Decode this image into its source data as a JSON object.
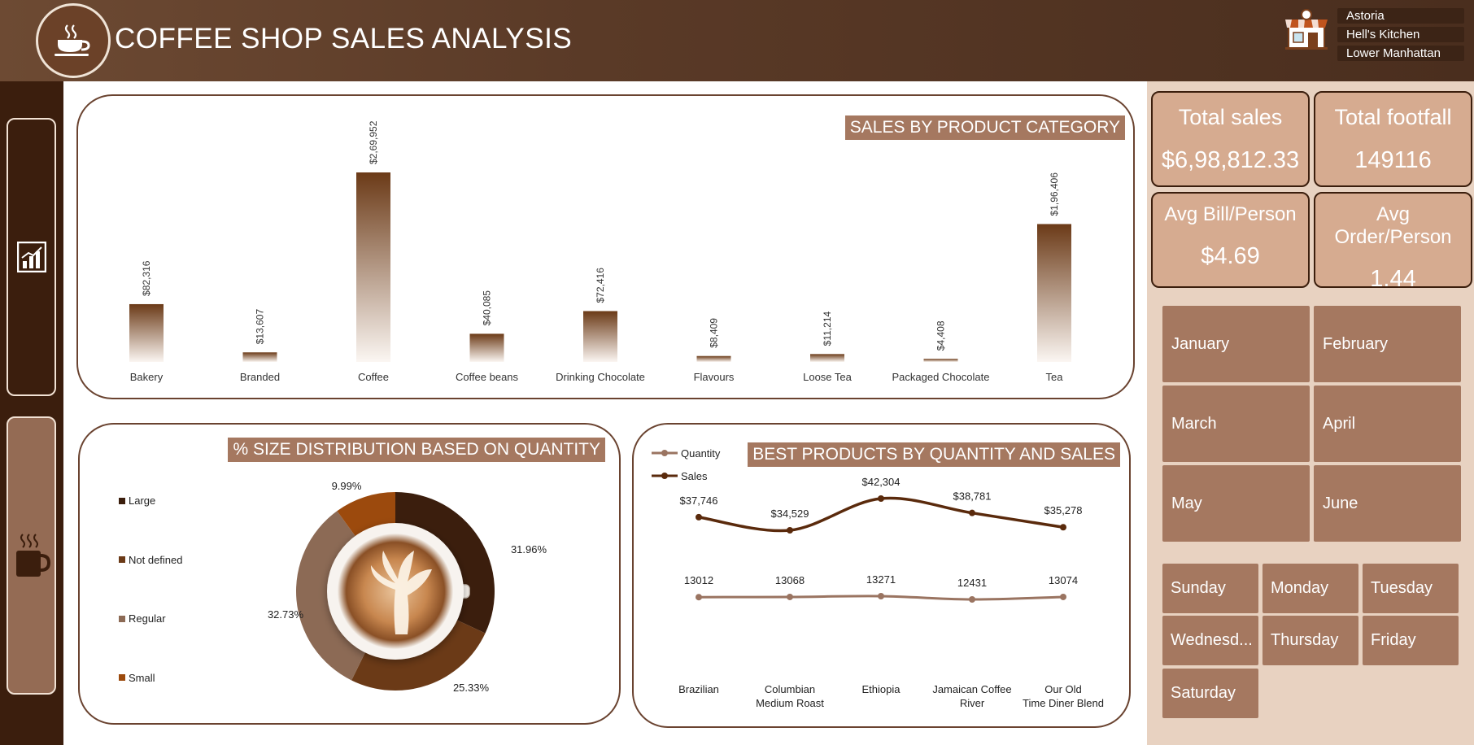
{
  "header": {
    "title": "COFFEE SHOP SALES ANALYSIS",
    "logo_icon": "coffee-cup-icon",
    "shop_icon": "storefront-icon"
  },
  "locations": [
    "Astoria",
    "Hell's Kitchen",
    "Lower Manhattan"
  ],
  "sidebar": {
    "items": [
      {
        "icon": "bar-chart-icon"
      },
      {
        "icon": "coffee-mug-icon"
      }
    ]
  },
  "kpis": {
    "total_sales": {
      "label": "Total sales",
      "value": "$6,98,812.33"
    },
    "total_footfall": {
      "label": "Total footfall",
      "value": "149116"
    },
    "avg_bill": {
      "label": "Avg Bill/Person",
      "value": "$4.69"
    },
    "avg_order": {
      "label": "Avg Order/Person",
      "value": "1.44"
    }
  },
  "months": [
    "January",
    "February",
    "March",
    "April",
    "May",
    "June"
  ],
  "days": [
    "Sunday",
    "Monday",
    "Tuesday",
    "Wednesd...",
    "Thursday",
    "Friday",
    "Saturday"
  ],
  "colors": {
    "dark_brown": "#3b1e0d",
    "medium_brown": "#6b3a17",
    "tan": "#a57860",
    "accent_orange": "#9c4a0d",
    "panel_bg": "#e8d2c1",
    "card_bg": "#d6ab90"
  },
  "chart_data": [
    {
      "type": "bar",
      "title": "SALES BY PRODUCT CATEGORY",
      "categories": [
        "Bakery",
        "Branded",
        "Coffee",
        "Coffee beans",
        "Drinking Chocolate",
        "Flavours",
        "Loose Tea",
        "Packaged Chocolate",
        "Tea"
      ],
      "values": [
        82316,
        13607,
        269952,
        40085,
        72416,
        8409,
        11214,
        4408,
        196406
      ],
      "data_labels": [
        "$82,316",
        "$13,607",
        "$2,69,952",
        "$40,085",
        "$72,416",
        "$8,409",
        "$11,214",
        "$4,408",
        "$1,96,406"
      ],
      "ylim": [
        0,
        269952
      ],
      "grid": false
    },
    {
      "type": "pie",
      "title": "% SIZE DISTRIBUTION BASED ON QUANTITY",
      "labels": [
        "Large",
        "Not defined",
        "Regular",
        "Small"
      ],
      "values": [
        31.96,
        25.33,
        32.73,
        9.99
      ],
      "data_labels": [
        "31.96%",
        "25.33%",
        "32.73%",
        "9.99%"
      ],
      "colors": [
        "#3b1e0d",
        "#6b3a17",
        "#8c6a55",
        "#9c4a0d"
      ],
      "legend_position": "left"
    },
    {
      "type": "line",
      "title": "BEST PRODUCTS BY QUANTITY AND SALES",
      "categories": [
        "Brazilian",
        "Columbian Medium Roast",
        "Ethiopia",
        "Jamaican Coffee River",
        "Our Old Time Diner Blend"
      ],
      "series": [
        {
          "name": "Quantity",
          "values": [
            13012,
            13068,
            13271,
            12431,
            13074
          ],
          "labels": [
            "13012",
            "13068",
            "13271",
            "12431",
            "13074"
          ],
          "color": "#9a7461"
        },
        {
          "name": "Sales",
          "values": [
            37746,
            34529,
            42304,
            38781,
            35278
          ],
          "labels": [
            "$37,746",
            "$34,529",
            "$42,304",
            "$38,781",
            "$35,278"
          ],
          "color": "#5a2a0c"
        }
      ],
      "legend_position": "top-left"
    }
  ]
}
